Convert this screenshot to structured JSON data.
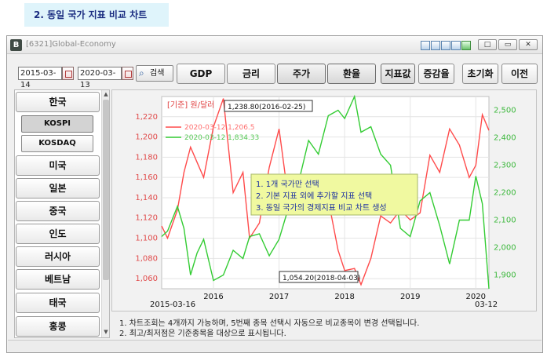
{
  "step_banner": "2. 동일 국가 지표 비교 차트",
  "window": {
    "title": "[6321]Global-Economy",
    "controls": [
      "□",
      "▭",
      "✕"
    ]
  },
  "search": {
    "start_date": "2015-03-14",
    "end_date": "2020-03-13",
    "search_label": "검색",
    "search_icon": "magnifier-icon",
    "calendar_icon": "calendar-icon"
  },
  "toolbar": {
    "gdp": "GDP",
    "interest": "금리",
    "stock": "주가",
    "exchange": "환율",
    "indicator": "지표값",
    "change_rate": "증감율",
    "reset": "초기화",
    "previous": "이전"
  },
  "sidebar": {
    "korea": "한국",
    "kospi": "KOSPI",
    "kosdaq": "KOSDAQ",
    "countries": [
      "미국",
      "일본",
      "중국",
      "인도",
      "러시아",
      "베트남",
      "태국",
      "홍콩"
    ]
  },
  "chart": {
    "unit_label": "[기준] 원/달러",
    "max_annotation": "1,238.80(2016-02-25)",
    "min_annotation": "1,054.20(2018-04-03)",
    "start_label": "2015-03-16",
    "end_label": "03-12",
    "tooltip": [
      "1. 1개 국가만 선택",
      "2. 기본 지표 외에 추가할 지표 선택",
      "3. 동일 국가의 경제지표 비교 차트 생성"
    ],
    "colors": {
      "red": "#ff4b4b",
      "green": "#33cc33"
    }
  },
  "chart_data": {
    "type": "line",
    "legend_position": "top-left",
    "grid": true,
    "x_ticks": [
      "2016",
      "2017",
      "2018",
      "2019",
      "2020"
    ],
    "y_left_ticks": [
      "1,220",
      "1,200",
      "1,180",
      "1,160",
      "1,140",
      "1,120",
      "1,100",
      "1,080",
      "1,060"
    ],
    "y_right_ticks": [
      "2,500",
      "2,400",
      "2,300",
      "2,200",
      "2,100",
      "2,000",
      "1,900"
    ],
    "y_left_range": [
      1050,
      1240
    ],
    "y_right_range": [
      1850,
      2550
    ],
    "x_range": [
      2015.21,
      2020.2
    ],
    "series": [
      {
        "name": "2020-03-12 1,206.5",
        "axis": "left",
        "color": "#ff4b4b",
        "x": [
          2015.21,
          2015.3,
          2015.45,
          2015.55,
          2015.65,
          2015.75,
          2015.85,
          2016.0,
          2016.15,
          2016.3,
          2016.45,
          2016.55,
          2016.7,
          2016.85,
          2017.0,
          2017.15,
          2017.3,
          2017.45,
          2017.6,
          2017.75,
          2017.9,
          2018.0,
          2018.15,
          2018.25,
          2018.4,
          2018.55,
          2018.7,
          2018.85,
          2019.0,
          2019.15,
          2019.3,
          2019.45,
          2019.6,
          2019.75,
          2019.9,
          2020.0,
          2020.1,
          2020.2
        ],
        "values": [
          1112,
          1100,
          1128,
          1165,
          1190,
          1175,
          1160,
          1210,
          1238,
          1145,
          1165,
          1100,
          1115,
          1170,
          1208,
          1135,
          1125,
          1142,
          1133,
          1138,
          1088,
          1068,
          1070,
          1054,
          1080,
          1122,
          1115,
          1128,
          1118,
          1125,
          1182,
          1165,
          1208,
          1192,
          1160,
          1172,
          1222,
          1206.5
        ]
      },
      {
        "name": "2020-03-12 1,834.33",
        "axis": "right",
        "color": "#33cc33",
        "x": [
          2015.21,
          2015.3,
          2015.45,
          2015.55,
          2015.65,
          2015.75,
          2015.85,
          2016.0,
          2016.15,
          2016.3,
          2016.45,
          2016.55,
          2016.7,
          2016.85,
          2017.0,
          2017.15,
          2017.3,
          2017.45,
          2017.6,
          2017.75,
          2017.9,
          2018.0,
          2018.15,
          2018.25,
          2018.4,
          2018.55,
          2018.7,
          2018.85,
          2019.0,
          2019.15,
          2019.3,
          2019.45,
          2019.6,
          2019.75,
          2019.9,
          2020.0,
          2020.1,
          2020.2
        ],
        "values": [
          2040,
          2060,
          2150,
          2070,
          1900,
          1980,
          2030,
          1880,
          1900,
          1990,
          1960,
          2040,
          2050,
          1970,
          2030,
          2150,
          2240,
          2390,
          2340,
          2480,
          2500,
          2470,
          2560,
          2420,
          2440,
          2340,
          2300,
          2070,
          2040,
          2170,
          2200,
          2080,
          1940,
          2100,
          2100,
          2260,
          2160,
          1834.33
        ]
      }
    ]
  },
  "notes": [
    "1. 차트조회는 4개까지 가능하며, 5번째 종목 선택시 자동으로 비교종목이 변경 선택됩니다.",
    "2. 최고/최저점은 기준종목을 대상으로 표시됩니다."
  ]
}
